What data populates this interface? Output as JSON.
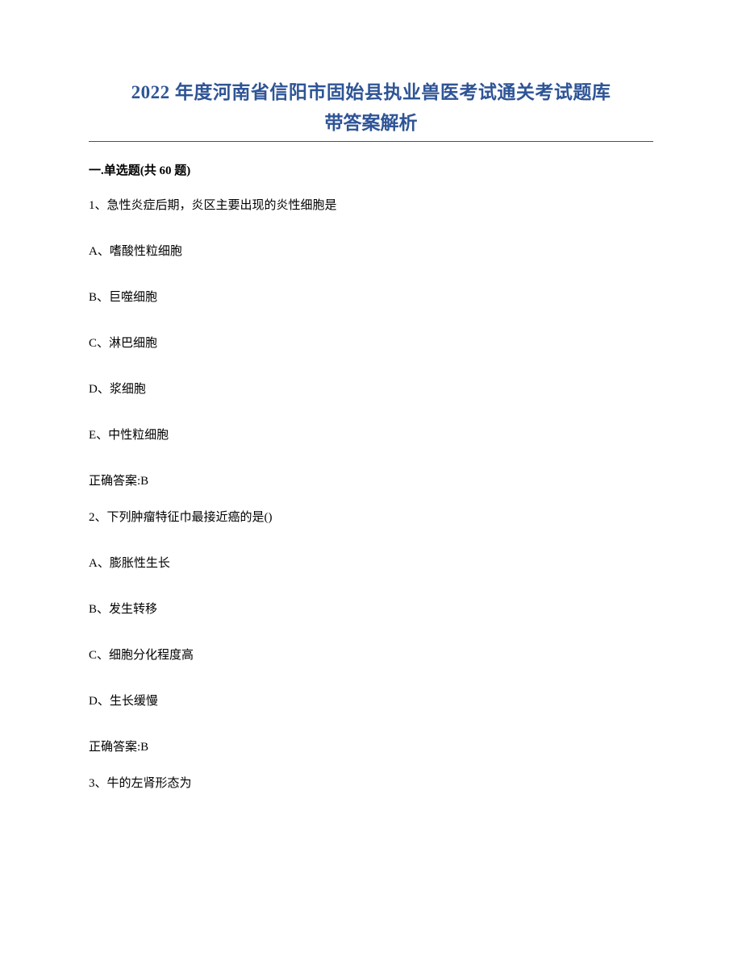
{
  "title": {
    "line1": "2022 年度河南省信阳市固始县执业兽医考试通关考试题库",
    "line2": "带答案解析",
    "color": "#2e5496",
    "fontsize": 23
  },
  "section_header": "一.单选题(共 60 题)",
  "questions": [
    {
      "number": "1",
      "text": "1、急性炎症后期，炎区主要出现的炎性细胞是",
      "options": [
        "A、嗜酸性粒细胞",
        "B、巨噬细胞",
        "C、淋巴细胞",
        "D、浆细胞",
        "E、中性粒细胞"
      ],
      "answer": "正确答案:B"
    },
    {
      "number": "2",
      "text": "2、下列肿瘤特征巾最接近癌的是()",
      "options": [
        "A、膨胀性生长",
        "B、发生转移",
        "C、细胞分化程度高",
        "D、生长缓慢"
      ],
      "answer": "正确答案:B"
    },
    {
      "number": "3",
      "text": "3、牛的左肾形态为",
      "options": [],
      "answer": ""
    }
  ],
  "colors": {
    "title": "#2e5496",
    "text": "#000000",
    "background": "#ffffff"
  },
  "typography": {
    "title_fontsize": 23,
    "body_fontsize": 15,
    "font_family": "SimSun"
  }
}
